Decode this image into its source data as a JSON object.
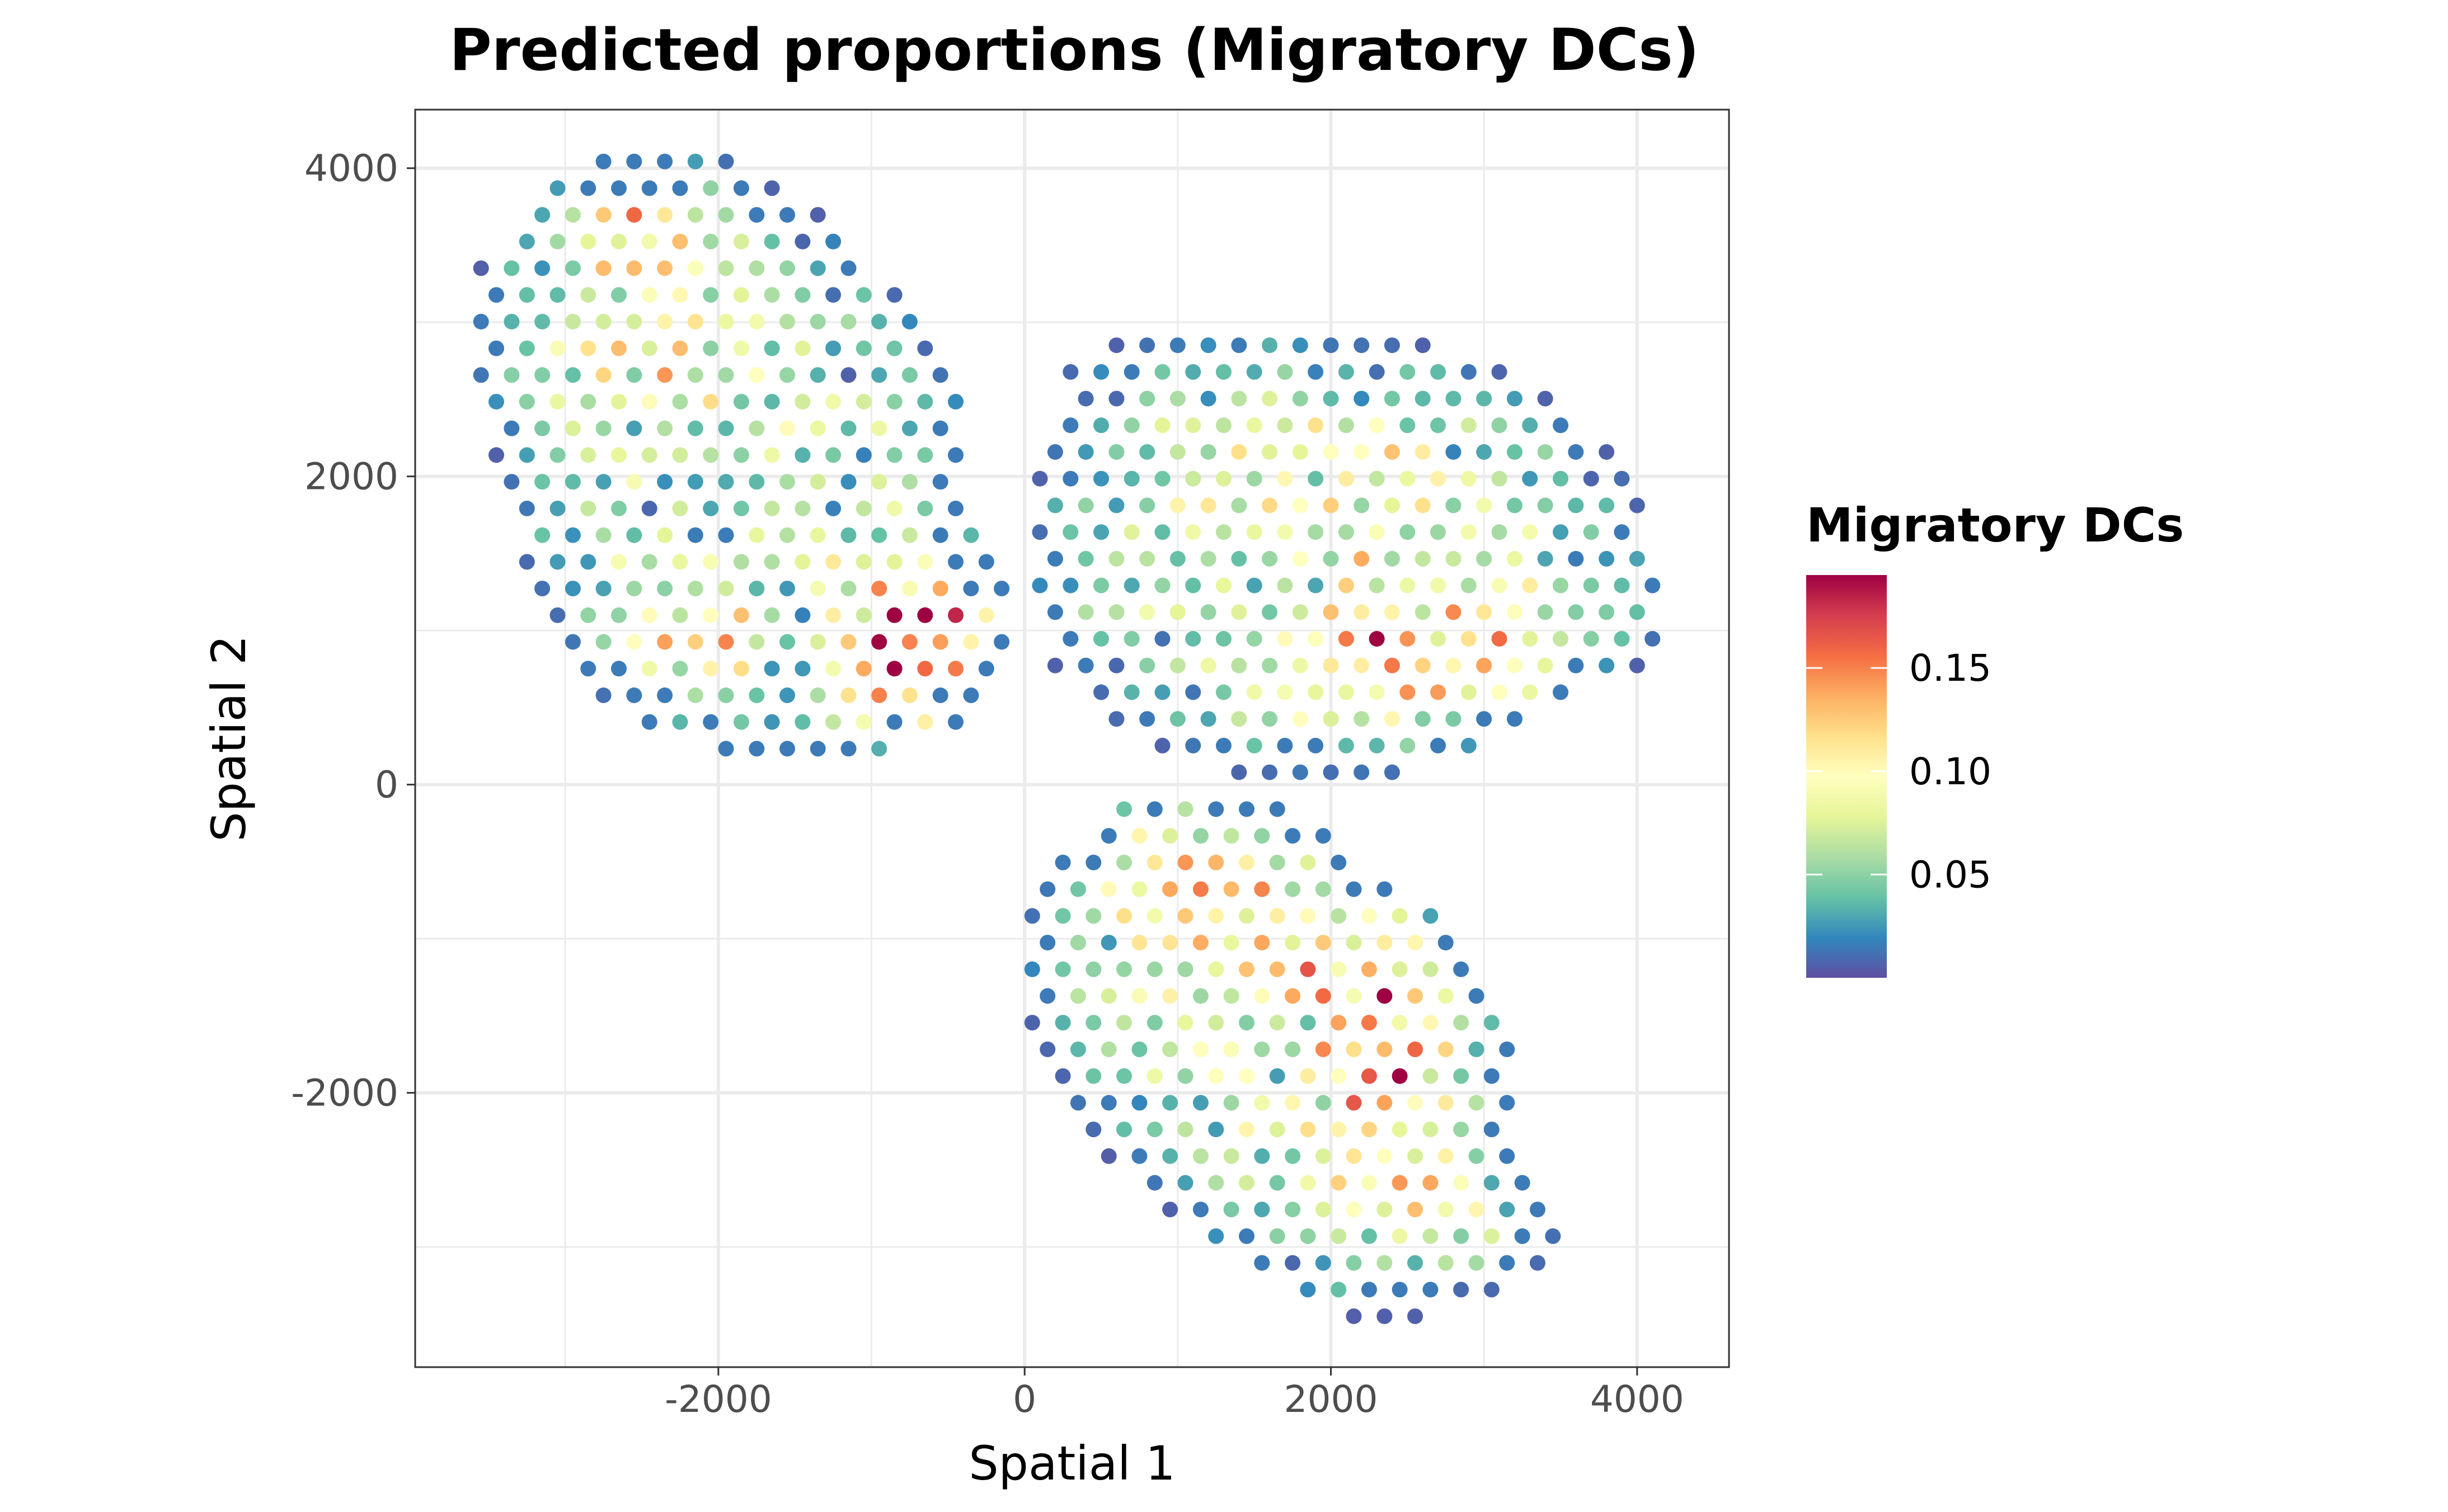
{
  "chart_data": {
    "type": "scatter",
    "title": "Predicted proportions (Migratory DCs)",
    "xlabel": "Spatial 1",
    "ylabel": "Spatial 2",
    "xlim": [
      -3980,
      4600
    ],
    "ylim": [
      -3780,
      4380
    ],
    "x_ticks": [
      -2000,
      0,
      2000,
      4000
    ],
    "x_tick_labels": [
      "-2000",
      "0",
      "2000",
      "4000"
    ],
    "y_ticks": [
      4000,
      2000,
      0,
      -2000
    ],
    "y_tick_labels": [
      "4000",
      "2000",
      "0",
      "-2000"
    ],
    "grid": true,
    "legend": {
      "title": "Migratory DCs",
      "position": "right",
      "min": 0.0,
      "max": 0.195,
      "ticks": [
        0.15,
        0.1,
        0.05
      ],
      "tick_labels": [
        "0.15",
        "0.10",
        "0.05"
      ],
      "palette": "Spectral"
    },
    "colors": [
      "#5e4fa2",
      "#3288bd",
      "#66c2a5",
      "#abdda4",
      "#e6f598",
      "#ffffbf",
      "#fee08b",
      "#fdae61",
      "#f46d43",
      "#d53e4f",
      "#9e0142"
    ],
    "spot_spacing": 200,
    "spot_max_value": 0.195,
    "tissue_sections": [
      {
        "polygon": [
          [
            -2900,
            4050
          ],
          [
            -1950,
            4050
          ],
          [
            -1400,
            3750
          ],
          [
            -1050,
            3450
          ],
          [
            -650,
            3000
          ],
          [
            -350,
            2550
          ],
          [
            -350,
            1700
          ],
          [
            -50,
            1200
          ],
          [
            -50,
            850
          ],
          [
            -300,
            450
          ],
          [
            -950,
            180
          ],
          [
            -1350,
            60
          ],
          [
            -1950,
            190
          ],
          [
            -2700,
            500
          ],
          [
            -3100,
            1000
          ],
          [
            -3300,
            1450
          ],
          [
            -3500,
            2250
          ],
          [
            -3650,
            2900
          ],
          [
            -3550,
            3400
          ],
          [
            -3100,
            3900
          ]
        ],
        "hot_spots": [
          [
            -700,
            650,
            0.14
          ],
          [
            -600,
            1200,
            0.12
          ],
          [
            -2550,
            3650,
            0.12
          ],
          [
            -2200,
            900,
            0.08
          ],
          [
            -2450,
            2800,
            0.08
          ]
        ]
      },
      {
        "polygon": [
          [
            300,
            2800
          ],
          [
            1200,
            3000
          ],
          [
            2700,
            2850
          ],
          [
            3300,
            2650
          ],
          [
            3800,
            2250
          ],
          [
            4050,
            1800
          ],
          [
            4200,
            1300
          ],
          [
            4150,
            850
          ],
          [
            3600,
            550
          ],
          [
            3100,
            300
          ],
          [
            2500,
            80
          ],
          [
            1300,
            80
          ],
          [
            600,
            350
          ],
          [
            150,
            800
          ],
          [
            0,
            1300
          ],
          [
            50,
            1900
          ]
        ],
        "hot_spots": [
          [
            2300,
            850,
            0.12
          ],
          [
            3050,
            800,
            0.1
          ],
          [
            1750,
            2200,
            0.06
          ],
          [
            2400,
            1700,
            0.06
          ],
          [
            1850,
            700,
            0.06
          ]
        ]
      },
      {
        "polygon": [
          [
            700,
            -50
          ],
          [
            1750,
            -50
          ],
          [
            2150,
            -500
          ],
          [
            2900,
            -950
          ],
          [
            3250,
            -1600
          ],
          [
            3250,
            -2300
          ],
          [
            3550,
            -2850
          ],
          [
            3300,
            -3250
          ],
          [
            2700,
            -3450
          ],
          [
            2000,
            -3450
          ],
          [
            1200,
            -3000
          ],
          [
            700,
            -2600
          ],
          [
            300,
            -2100
          ],
          [
            -50,
            -1400
          ],
          [
            0,
            -800
          ],
          [
            350,
            -350
          ]
        ],
        "hot_spots": [
          [
            2300,
            -1850,
            0.12
          ],
          [
            2300,
            -1200,
            0.1
          ],
          [
            900,
            -550,
            0.1
          ],
          [
            1550,
            -850,
            0.09
          ],
          [
            2500,
            -2550,
            0.09
          ]
        ]
      }
    ]
  }
}
